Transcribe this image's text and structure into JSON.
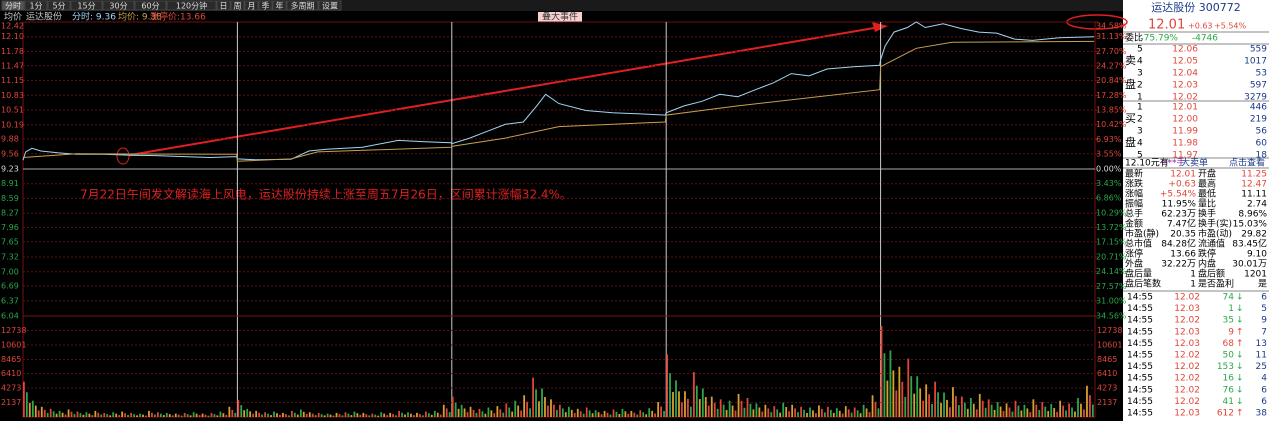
{
  "toolbar": [
    "分时",
    "1分",
    "5分",
    "15分",
    "30分",
    "60分",
    "120分钟",
    "日",
    "周",
    "月",
    "季",
    "年",
    "多周期",
    "设置"
  ],
  "header": {
    "mode": "均价",
    "stock": "运达股份",
    "fenshi": "分时: 9.36",
    "junjia": "均价: 9.38",
    "limit": "涨停价:13.66",
    "tab": "叠大事件"
  },
  "annotation": "7月22日午间发文解读海上风电，运达股份持续上涨至周五7月26日，区间累计涨幅32.4%。",
  "chart_data": [
    {
      "type": "line",
      "xlim": [
        0,
        1200
      ],
      "ylim": [
        6.04,
        12.42
      ],
      "y2lim": [
        -34.56,
        34.58
      ],
      "yticks": [
        {
          "value": 12.42,
          "label": "12.42"
        },
        {
          "value": 12.1,
          "label": "12.10"
        },
        {
          "value": 11.78,
          "label": "11.78"
        },
        {
          "value": 11.47,
          "label": "11.47"
        },
        {
          "value": 11.15,
          "label": "11.15"
        },
        {
          "value": 10.83,
          "label": "10.83"
        },
        {
          "value": 10.51,
          "label": "10.51"
        },
        {
          "value": 10.19,
          "label": "10.19"
        },
        {
          "value": 9.88,
          "label": "9.88"
        },
        {
          "value": 9.56,
          "label": "9.56"
        },
        {
          "value": 9.23,
          "label": "9.23"
        },
        {
          "value": 8.91,
          "label": "8.91"
        },
        {
          "value": 8.59,
          "label": "8.59"
        },
        {
          "value": 8.27,
          "label": "8.27"
        },
        {
          "value": 7.96,
          "label": "7.96"
        },
        {
          "value": 7.65,
          "label": "7.65"
        },
        {
          "value": 7.32,
          "label": "7.32"
        },
        {
          "value": 7.0,
          "label": "7.00"
        },
        {
          "value": 6.69,
          "label": "6.69"
        },
        {
          "value": 6.37,
          "label": "6.37"
        },
        {
          "value": 6.04,
          "label": "6.04"
        }
      ],
      "y2ticks": [
        {
          "value": 34.58,
          "label": "34.58%"
        },
        {
          "value": 31.13,
          "label": "31.13%"
        },
        {
          "value": 27.7,
          "label": "27.70%"
        },
        {
          "value": 24.27,
          "label": "24.27%"
        },
        {
          "value": 20.84,
          "label": "20.84%"
        },
        {
          "value": 17.28,
          "label": "17.28%"
        },
        {
          "value": 13.85,
          "label": "13.85%"
        },
        {
          "value": 10.42,
          "label": "10.42%"
        },
        {
          "value": 6.93,
          "label": "6.93%"
        },
        {
          "value": 3.55,
          "label": "3.55%"
        },
        {
          "value": 0,
          "label": "0.00%"
        },
        {
          "value": -3.43,
          "label": "3.43%"
        },
        {
          "value": -6.86,
          "label": "6.86%"
        },
        {
          "value": -10.29,
          "label": "10.29%"
        },
        {
          "value": -13.72,
          "label": "13.72%"
        },
        {
          "value": -17.15,
          "label": "17.15%"
        },
        {
          "value": -20.71,
          "label": "20.71%"
        },
        {
          "value": -24.14,
          "label": "24.14%"
        },
        {
          "value": -27.57,
          "label": "27.57%"
        },
        {
          "value": -31.0,
          "label": "31.00%"
        },
        {
          "value": -34.56,
          "label": "34.56%"
        }
      ],
      "day_breaks": [
        240,
        480,
        720,
        960
      ],
      "series": [
        {
          "color": "#9fd8f5",
          "x": [
            0,
            3,
            10,
            20,
            40,
            60,
            90,
            120,
            150,
            180,
            210,
            239,
            240,
            260,
            300,
            320,
            340,
            380,
            420,
            450,
            479,
            480,
            500,
            520,
            540,
            560,
            575,
            585,
            600,
            630,
            660,
            700,
            719,
            720,
            740,
            760,
            780,
            800,
            820,
            840,
            860,
            880,
            900,
            930,
            959,
            960,
            965,
            975,
            990,
            1000,
            1010,
            1030,
            1050,
            1070,
            1090,
            1110,
            1130,
            1160,
            1199
          ],
          "values": [
            9.42,
            9.6,
            9.68,
            9.62,
            9.58,
            9.55,
            9.55,
            9.53,
            9.52,
            9.5,
            9.48,
            9.5,
            9.45,
            9.43,
            9.44,
            9.62,
            9.66,
            9.7,
            9.85,
            9.82,
            9.8,
            9.78,
            9.9,
            10.05,
            10.2,
            10.25,
            10.6,
            10.85,
            10.65,
            10.5,
            10.45,
            10.42,
            10.4,
            10.45,
            10.6,
            10.7,
            10.85,
            10.8,
            10.95,
            11.1,
            11.3,
            11.25,
            11.4,
            11.45,
            11.48,
            11.6,
            11.9,
            12.2,
            12.3,
            12.42,
            12.3,
            12.38,
            12.28,
            12.2,
            12.18,
            12.05,
            12.02,
            12.08,
            12.1
          ]
        },
        {
          "color": "#c8a050",
          "x": [
            0,
            60,
            239,
            240,
            300,
            330,
            479,
            480,
            540,
            600,
            719,
            720,
            800,
            959,
            960,
            1000,
            1040,
            1199
          ],
          "values": [
            9.48,
            9.56,
            9.55,
            9.4,
            9.45,
            9.6,
            9.7,
            9.72,
            9.9,
            10.15,
            10.25,
            10.4,
            10.6,
            10.95,
            11.45,
            11.85,
            11.98,
            12.0
          ]
        }
      ]
    },
    {
      "type": "bar",
      "ylim": [
        0,
        14875
      ],
      "yticks": [
        2137,
        4273,
        6410,
        8465,
        10601,
        12738
      ],
      "colors": [
        "#e0463a",
        "#2aa84a",
        "#d9a030"
      ],
      "values": [
        5200,
        2400,
        1500,
        1200,
        900,
        1100,
        800,
        700,
        900,
        600,
        700,
        800,
        600,
        500,
        900,
        700,
        600,
        500,
        600,
        700,
        500,
        600,
        800,
        1500,
        2500,
        1200,
        900,
        700,
        800,
        600,
        900,
        1100,
        700,
        600,
        500,
        600,
        700,
        800,
        600,
        500,
        700,
        600,
        900,
        700,
        600,
        800,
        900,
        1800,
        3000,
        1800,
        1500,
        1200,
        1400,
        1600,
        2000,
        2400,
        3200,
        5800,
        4200,
        2600,
        1800,
        1500,
        1200,
        1400,
        1000,
        900,
        1100,
        1200,
        900,
        1000,
        1300,
        2200,
        9200,
        5400,
        3800,
        6600,
        4200,
        3000,
        2600,
        2400,
        3400,
        2800,
        2000,
        1800,
        1600,
        2100,
        1800,
        1500,
        1400,
        1700,
        1500,
        1300,
        1600,
        1400,
        1800,
        3200,
        13400,
        9800,
        7400,
        8600,
        6000,
        4800,
        5200,
        3600,
        4400,
        3000,
        2800,
        3400,
        2600,
        2200,
        2000,
        2400,
        1800,
        2600,
        2200,
        1900,
        2400,
        2000,
        2800,
        4600
      ]
    }
  ],
  "quote_panel": {
    "name": "运达股份 300772",
    "price": "12.01",
    "change": "+0.63",
    "pct": "+5.54%",
    "weibi_label": "委比",
    "weibi": "-75.79%",
    "weicha": "-4746",
    "sell_label": [
      "卖",
      "盘"
    ],
    "sell": [
      [
        5,
        "12.06",
        559
      ],
      [
        4,
        "12.05",
        1017
      ],
      [
        3,
        "12.04",
        53
      ],
      [
        2,
        "12.03",
        597
      ],
      [
        1,
        "12.02",
        3279
      ]
    ],
    "buy_label": [
      "买",
      "盘"
    ],
    "buy": [
      [
        1,
        "12.01",
        446
      ],
      [
        2,
        "12.00",
        219
      ],
      [
        3,
        "11.99",
        56
      ],
      [
        4,
        "11.98",
        60
      ],
      [
        5,
        "11.97",
        18
      ]
    ],
    "big_order": [
      "12.10元有",
      "***手",
      "大卖单",
      "点击查看"
    ],
    "stats": [
      [
        "最新",
        "12.01",
        "开盘",
        "11.25"
      ],
      [
        "涨跌",
        "+0.63",
        "最高",
        "12.47"
      ],
      [
        "涨幅",
        "+5.54%",
        "最低",
        "11.11"
      ],
      [
        "振幅",
        "11.95%",
        "量比",
        "2.74"
      ],
      [
        "总手",
        "62.23万",
        "换手",
        "8.96%"
      ],
      [
        "金额",
        "7.47亿",
        "换手(实)",
        "15.03%"
      ],
      [
        "市盈(静)",
        "20.35",
        "市盈(动)",
        "29.82"
      ],
      [
        "总市值",
        "84.28亿",
        "流通值",
        "83.45亿"
      ],
      [
        "涨停",
        "13.66",
        "跌停",
        "9.10"
      ],
      [
        "外盘",
        "32.22万",
        "内盘",
        "30.01万"
      ],
      [
        "盘后量",
        "1",
        "盘后额",
        "1201"
      ],
      [
        "盘后笔数",
        "1",
        "是否盈利",
        "是"
      ]
    ],
    "ticks": [
      [
        "14:55",
        "12.02",
        74,
        "↓",
        6
      ],
      [
        "14:55",
        "12.03",
        1,
        "↓",
        5
      ],
      [
        "14:55",
        "12.02",
        35,
        "↓",
        9
      ],
      [
        "14:55",
        "12.03",
        9,
        "↑",
        7
      ],
      [
        "14:55",
        "12.03",
        68,
        "↑",
        13
      ],
      [
        "14:55",
        "12.02",
        50,
        "↓",
        11
      ],
      [
        "14:55",
        "12.02",
        153,
        "↓",
        25
      ],
      [
        "14:55",
        "12.02",
        16,
        "↓",
        4
      ],
      [
        "14:55",
        "12.02",
        76,
        "↓",
        6
      ],
      [
        "14:55",
        "12.02",
        41,
        "↓",
        6
      ],
      [
        "14:55",
        "12.03",
        612,
        "↑",
        38
      ]
    ]
  }
}
